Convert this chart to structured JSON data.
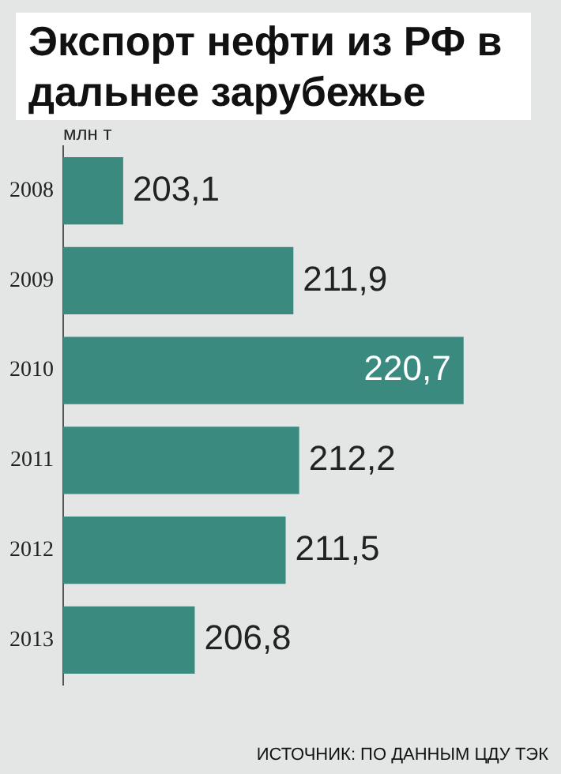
{
  "chart_data": {
    "type": "bar",
    "orientation": "horizontal",
    "title": "Экспорт нефти из РФ в дальнее зарубежье",
    "xlabel": "млн т",
    "categories": [
      "2008",
      "2009",
      "2010",
      "2011",
      "2012",
      "2013"
    ],
    "values": [
      203.1,
      211.9,
      220.7,
      212.2,
      211.5,
      206.8
    ],
    "color": "#3b8a80",
    "value_labels": [
      "203,1",
      "211,9",
      "220,7",
      "212,2",
      "211,5",
      "206,8"
    ],
    "tick_labels": "y",
    "grid": false,
    "legend": false,
    "annotations": [
      "ИСТОЧНИК: ПО ДАННЫМ ЦДУ ТЭК"
    ]
  }
}
